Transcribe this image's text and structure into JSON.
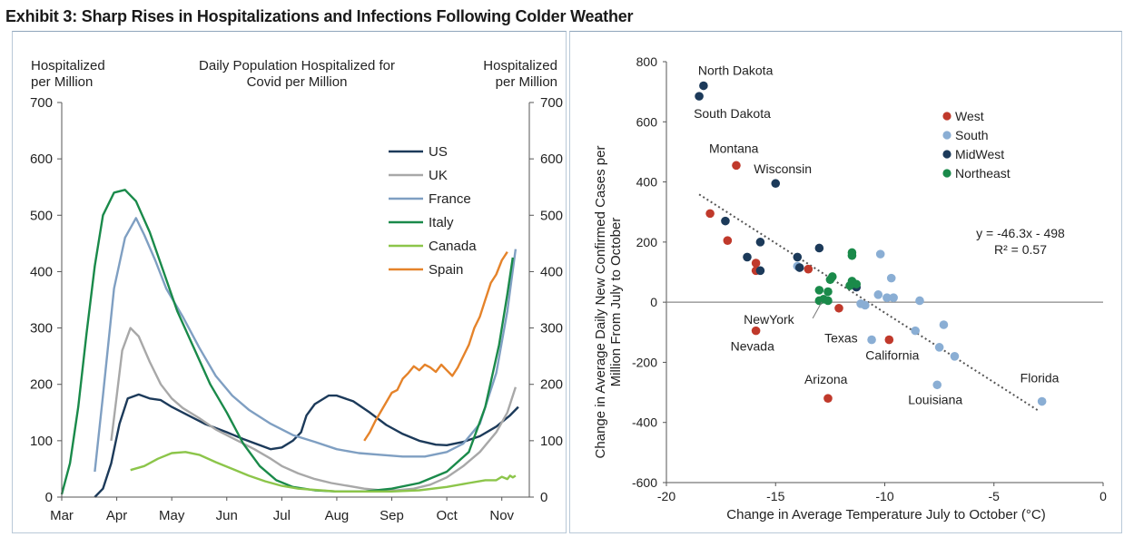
{
  "title": "Exhibit 3: Sharp Rises in Hospitalizations and Infections Following Colder Weather",
  "chart_data": [
    {
      "type": "line",
      "title": "Daily Population  Hospitalized for Covid  per Million",
      "title_lines": [
        "Daily Population  Hospitalized for",
        "Covid  per Million"
      ],
      "ylabel_left": [
        "Hospitalized",
        "per Million"
      ],
      "ylabel_right": [
        "Hospitalized",
        "per Million"
      ],
      "xlabel": "",
      "ylim": [
        0,
        700
      ],
      "yticks": [
        0,
        100,
        200,
        300,
        400,
        500,
        600,
        700
      ],
      "xlim": [
        0,
        8.5
      ],
      "xticks": [
        {
          "label": "Mar",
          "x": 0
        },
        {
          "label": "Apr",
          "x": 1
        },
        {
          "label": "May",
          "x": 2
        },
        {
          "label": "Jun",
          "x": 3
        },
        {
          "label": "Jul",
          "x": 4
        },
        {
          "label": "Aug",
          "x": 5
        },
        {
          "label": "Sep",
          "x": 6
        },
        {
          "label": "Oct",
          "x": 7
        },
        {
          "label": "Nov",
          "x": 8
        }
      ],
      "legend_position": "top-right",
      "series": [
        {
          "name": "US",
          "color": "#1c3a5a",
          "points": [
            [
              0.6,
              0
            ],
            [
              0.75,
              15
            ],
            [
              0.9,
              60
            ],
            [
              1.05,
              130
            ],
            [
              1.2,
              175
            ],
            [
              1.4,
              182
            ],
            [
              1.6,
              175
            ],
            [
              1.8,
              172
            ],
            [
              2.0,
              160
            ],
            [
              2.3,
              145
            ],
            [
              2.6,
              130
            ],
            [
              3.0,
              115
            ],
            [
              3.3,
              103
            ],
            [
              3.6,
              92
            ],
            [
              3.8,
              85
            ],
            [
              4.0,
              88
            ],
            [
              4.2,
              100
            ],
            [
              4.35,
              115
            ],
            [
              4.45,
              145
            ],
            [
              4.6,
              165
            ],
            [
              4.85,
              180
            ],
            [
              5.0,
              180
            ],
            [
              5.3,
              170
            ],
            [
              5.6,
              150
            ],
            [
              5.9,
              128
            ],
            [
              6.2,
              112
            ],
            [
              6.5,
              100
            ],
            [
              6.8,
              93
            ],
            [
              7.0,
              92
            ],
            [
              7.3,
              98
            ],
            [
              7.6,
              108
            ],
            [
              7.9,
              125
            ],
            [
              8.15,
              145
            ],
            [
              8.3,
              160
            ]
          ]
        },
        {
          "name": "UK",
          "color": "#a8a8a8",
          "points": [
            [
              0.9,
              100
            ],
            [
              1.0,
              180
            ],
            [
              1.1,
              260
            ],
            [
              1.25,
              300
            ],
            [
              1.4,
              285
            ],
            [
              1.6,
              240
            ],
            [
              1.8,
              200
            ],
            [
              2.0,
              175
            ],
            [
              2.2,
              158
            ],
            [
              2.5,
              140
            ],
            [
              2.8,
              120
            ],
            [
              3.1,
              105
            ],
            [
              3.5,
              85
            ],
            [
              3.8,
              68
            ],
            [
              4.0,
              55
            ],
            [
              4.3,
              42
            ],
            [
              4.6,
              32
            ],
            [
              4.9,
              25
            ],
            [
              5.2,
              20
            ],
            [
              5.5,
              15
            ],
            [
              5.8,
              12
            ],
            [
              6.1,
              12
            ],
            [
              6.4,
              15
            ],
            [
              6.7,
              22
            ],
            [
              7.0,
              35
            ],
            [
              7.3,
              55
            ],
            [
              7.6,
              80
            ],
            [
              7.9,
              115
            ],
            [
              8.1,
              150
            ],
            [
              8.25,
              195
            ]
          ]
        },
        {
          "name": "France",
          "color": "#7f9fc2",
          "points": [
            [
              0.6,
              45
            ],
            [
              0.75,
              180
            ],
            [
              0.95,
              370
            ],
            [
              1.15,
              460
            ],
            [
              1.35,
              495
            ],
            [
              1.5,
              465
            ],
            [
              1.7,
              420
            ],
            [
              1.9,
              370
            ],
            [
              2.2,
              320
            ],
            [
              2.5,
              265
            ],
            [
              2.8,
              215
            ],
            [
              3.1,
              180
            ],
            [
              3.4,
              155
            ],
            [
              3.8,
              130
            ],
            [
              4.2,
              110
            ],
            [
              4.6,
              98
            ],
            [
              5.0,
              85
            ],
            [
              5.4,
              78
            ],
            [
              5.8,
              75
            ],
            [
              6.2,
              72
            ],
            [
              6.6,
              72
            ],
            [
              7.0,
              80
            ],
            [
              7.3,
              95
            ],
            [
              7.6,
              130
            ],
            [
              7.9,
              220
            ],
            [
              8.1,
              330
            ],
            [
              8.25,
              440
            ]
          ]
        },
        {
          "name": "Italy",
          "color": "#1a8a4a",
          "points": [
            [
              0.0,
              5
            ],
            [
              0.15,
              60
            ],
            [
              0.3,
              160
            ],
            [
              0.45,
              290
            ],
            [
              0.6,
              410
            ],
            [
              0.75,
              500
            ],
            [
              0.95,
              540
            ],
            [
              1.15,
              545
            ],
            [
              1.35,
              525
            ],
            [
              1.6,
              470
            ],
            [
              1.85,
              400
            ],
            [
              2.1,
              330
            ],
            [
              2.4,
              265
            ],
            [
              2.7,
              200
            ],
            [
              3.0,
              150
            ],
            [
              3.3,
              95
            ],
            [
              3.6,
              55
            ],
            [
              3.9,
              30
            ],
            [
              4.2,
              18
            ],
            [
              4.6,
              12
            ],
            [
              5.0,
              10
            ],
            [
              5.5,
              10
            ],
            [
              6.0,
              15
            ],
            [
              6.5,
              25
            ],
            [
              7.0,
              45
            ],
            [
              7.4,
              80
            ],
            [
              7.7,
              160
            ],
            [
              7.95,
              270
            ],
            [
              8.1,
              360
            ],
            [
              8.2,
              425
            ]
          ]
        },
        {
          "name": "Canada",
          "color": "#8cc54a",
          "points": [
            [
              1.25,
              48
            ],
            [
              1.5,
              55
            ],
            [
              1.75,
              68
            ],
            [
              2.0,
              78
            ],
            [
              2.25,
              80
            ],
            [
              2.5,
              75
            ],
            [
              2.8,
              62
            ],
            [
              3.1,
              50
            ],
            [
              3.4,
              38
            ],
            [
              3.7,
              28
            ],
            [
              4.0,
              20
            ],
            [
              4.3,
              15
            ],
            [
              4.7,
              12
            ],
            [
              5.0,
              10
            ],
            [
              5.5,
              10
            ],
            [
              6.0,
              10
            ],
            [
              6.5,
              12
            ],
            [
              7.0,
              18
            ],
            [
              7.4,
              25
            ],
            [
              7.7,
              30
            ],
            [
              7.9,
              30
            ],
            [
              8.0,
              36
            ],
            [
              8.1,
              32
            ],
            [
              8.15,
              38
            ],
            [
              8.2,
              35
            ],
            [
              8.25,
              38
            ]
          ]
        },
        {
          "name": "Spain",
          "color": "#e5832a",
          "points": [
            [
              5.5,
              100
            ],
            [
              5.6,
              115
            ],
            [
              5.7,
              135
            ],
            [
              5.85,
              160
            ],
            [
              6.0,
              185
            ],
            [
              6.1,
              190
            ],
            [
              6.2,
              210
            ],
            [
              6.3,
              220
            ],
            [
              6.4,
              232
            ],
            [
              6.5,
              225
            ],
            [
              6.6,
              235
            ],
            [
              6.7,
              230
            ],
            [
              6.8,
              222
            ],
            [
              6.9,
              235
            ],
            [
              7.0,
              225
            ],
            [
              7.1,
              215
            ],
            [
              7.2,
              230
            ],
            [
              7.3,
              250
            ],
            [
              7.4,
              270
            ],
            [
              7.5,
              300
            ],
            [
              7.6,
              320
            ],
            [
              7.7,
              350
            ],
            [
              7.8,
              380
            ],
            [
              7.9,
              395
            ],
            [
              8.0,
              420
            ],
            [
              8.1,
              435
            ]
          ]
        }
      ]
    },
    {
      "type": "scatter",
      "ylabel": "Change in Average  Daily New  Confirmed  Cases per Million From July to October",
      "ylabel_lines": [
        "Change in Average  Daily New  Confirmed  Cases per",
        "Million From July to October"
      ],
      "xlabel": "Change  in Average  Temperature  July to October (°C)",
      "xlim": [
        -20,
        0
      ],
      "ylim": [
        -600,
        800
      ],
      "xticks": [
        -20,
        -15,
        -10,
        -5,
        0
      ],
      "yticks": [
        -600,
        -400,
        -200,
        0,
        200,
        400,
        600,
        800
      ],
      "legend_position": "top-right",
      "equation": "y = -46.3x - 498",
      "r_squared": "R² = 0.57",
      "trendline": {
        "slope": -46.3,
        "intercept": -498,
        "x_range": [
          -18.5,
          -3
        ]
      },
      "series": [
        {
          "name": "West",
          "color": "#c0392b",
          "points": [
            [
              -18.0,
              295
            ],
            [
              -17.2,
              205
            ],
            [
              -16.8,
              455
            ],
            [
              -15.9,
              130
            ],
            [
              -15.9,
              105
            ],
            [
              -13.5,
              110
            ],
            [
              -12.1,
              -20
            ],
            [
              -15.9,
              -95
            ],
            [
              -12.6,
              -320
            ],
            [
              -9.8,
              -125
            ]
          ]
        },
        {
          "name": "South",
          "color": "#8aaed4",
          "points": [
            [
              -14.0,
              120
            ],
            [
              -10.2,
              160
            ],
            [
              -9.7,
              80
            ],
            [
              -10.3,
              25
            ],
            [
              -9.9,
              15
            ],
            [
              -9.6,
              15
            ],
            [
              -8.4,
              5
            ],
            [
              -11.1,
              -5
            ],
            [
              -10.9,
              -10
            ],
            [
              -8.6,
              -95
            ],
            [
              -7.5,
              -150
            ],
            [
              -6.8,
              -180
            ],
            [
              -7.3,
              -75
            ],
            [
              -10.6,
              -125
            ],
            [
              -7.6,
              -275
            ],
            [
              -2.8,
              -330
            ]
          ]
        },
        {
          "name": "MidWest",
          "color": "#1c3a5a",
          "points": [
            [
              -18.3,
              720
            ],
            [
              -18.5,
              685
            ],
            [
              -15.0,
              395
            ],
            [
              -17.3,
              270
            ],
            [
              -15.7,
              200
            ],
            [
              -16.3,
              150
            ],
            [
              -15.7,
              105
            ],
            [
              -14.0,
              150
            ],
            [
              -13.9,
              115
            ],
            [
              -13.0,
              180
            ],
            [
              -11.3,
              50
            ]
          ]
        },
        {
          "name": "Northeast",
          "color": "#1a8a4a",
          "points": [
            [
              -11.5,
              165
            ],
            [
              -11.5,
              155
            ],
            [
              -12.4,
              85
            ],
            [
              -12.5,
              75
            ],
            [
              -11.5,
              70
            ],
            [
              -11.3,
              60
            ],
            [
              -11.6,
              55
            ],
            [
              -13.0,
              40
            ],
            [
              -12.6,
              35
            ],
            [
              -12.8,
              10
            ],
            [
              -12.6,
              5
            ],
            [
              -13.0,
              5
            ]
          ]
        }
      ],
      "annotations": [
        {
          "text": "North Dakota",
          "x": -18.3,
          "y": 720
        },
        {
          "text": "South Dakota",
          "x": -18.5,
          "y": 685
        },
        {
          "text": "Montana",
          "x": -16.8,
          "y": 455
        },
        {
          "text": "Wisconsin",
          "x": -15.0,
          "y": 395
        },
        {
          "text": "NewYork",
          "x": -12.8,
          "y": 10
        },
        {
          "text": "Nevada",
          "x": -15.9,
          "y": -95
        },
        {
          "text": "Texas",
          "x": -10.6,
          "y": -125
        },
        {
          "text": "California",
          "x": -9.8,
          "y": -125
        },
        {
          "text": "Arizona",
          "x": -12.6,
          "y": -320
        },
        {
          "text": "Louisiana",
          "x": -7.6,
          "y": -275
        },
        {
          "text": "Florida",
          "x": -2.8,
          "y": -330
        }
      ]
    }
  ]
}
